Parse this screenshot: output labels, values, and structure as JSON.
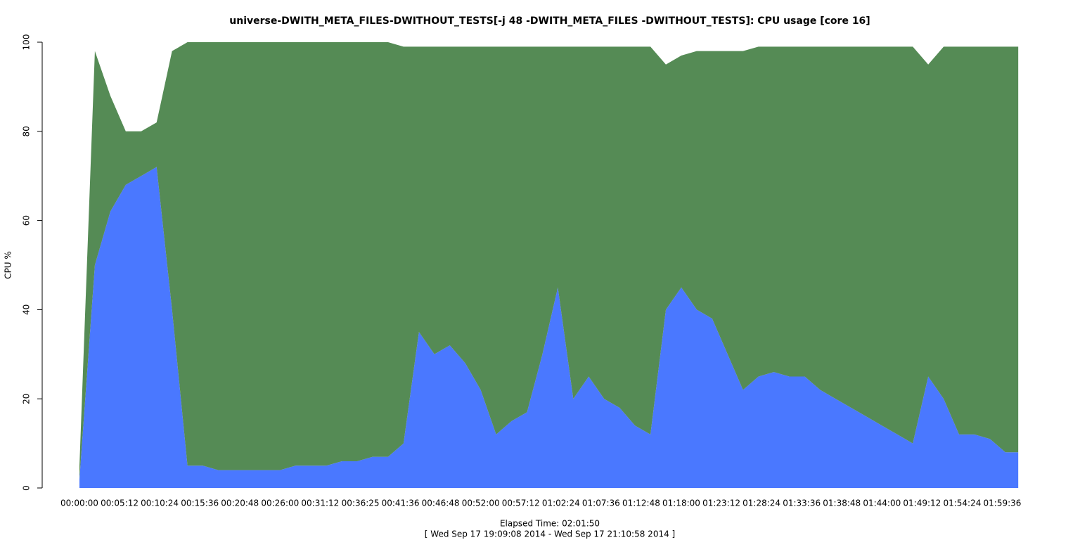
{
  "chart_data": {
    "type": "stacked_area",
    "title": "universe-DWITH_META_FILES-DWITHOUT_TESTS[-j 48 -DWITH_META_FILES -DWITHOUT_TESTS]: CPU usage [core 16]",
    "ylabel": "CPU %",
    "xlabel": "Elapsed Time: 02:01:50",
    "caption": "[ Wed Sep 17 19:09:08 2014 - Wed Sep 17 21:10:58 2014 ]",
    "x": [
      0,
      120,
      240,
      360,
      480,
      600,
      720,
      840,
      960,
      1080,
      1200,
      1320,
      1440,
      1560,
      1680,
      1800,
      1920,
      2040,
      2160,
      2280,
      2400,
      2520,
      2640,
      2760,
      2880,
      3000,
      3120,
      3240,
      3360,
      3480,
      3600,
      3720,
      3840,
      3960,
      4080,
      4200,
      4320,
      4440,
      4560,
      4680,
      4800,
      4920,
      5040,
      5160,
      5280,
      5400,
      5520,
      5640,
      5760,
      5880,
      6000,
      6120,
      6240,
      6360,
      6480,
      6600,
      6720,
      6840,
      6960,
      7080,
      7200,
      7300
    ],
    "series": [
      {
        "color": "#4a78ff",
        "values": [
          2,
          50,
          62,
          68,
          70,
          72,
          40,
          5,
          5,
          4,
          4,
          4,
          4,
          4,
          5,
          5,
          5,
          6,
          6,
          7,
          7,
          10,
          35,
          30,
          32,
          28,
          22,
          12,
          15,
          17,
          30,
          45,
          20,
          25,
          20,
          18,
          14,
          12,
          40,
          45,
          40,
          38,
          30,
          22,
          25,
          26,
          25,
          25,
          22,
          20,
          18,
          16,
          14,
          12,
          10,
          25,
          20,
          12,
          12,
          11,
          8,
          8
        ]
      },
      {
        "color": "#558b55",
        "values": [
          3,
          48,
          26,
          12,
          10,
          10,
          58,
          95,
          95,
          96,
          96,
          96,
          96,
          96,
          95,
          95,
          95,
          94,
          94,
          93,
          93,
          89,
          64,
          69,
          67,
          71,
          77,
          87,
          84,
          82,
          69,
          54,
          79,
          74,
          79,
          81,
          85,
          87,
          55,
          52,
          58,
          60,
          68,
          76,
          74,
          73,
          74,
          74,
          77,
          79,
          81,
          83,
          85,
          87,
          89,
          70,
          79,
          87,
          87,
          88,
          91,
          91
        ]
      }
    ],
    "xlim": [
      0,
      7310
    ],
    "xticks": [
      {
        "value": 0,
        "label": "00:00:00"
      },
      {
        "value": 312,
        "label": "00:05:12"
      },
      {
        "value": 624,
        "label": "00:10:24"
      },
      {
        "value": 936,
        "label": "00:15:36"
      },
      {
        "value": 1248,
        "label": "00:20:48"
      },
      {
        "value": 1560,
        "label": "00:26:00"
      },
      {
        "value": 1872,
        "label": "00:31:12"
      },
      {
        "value": 2185,
        "label": "00:36:25"
      },
      {
        "value": 2496,
        "label": "00:41:36"
      },
      {
        "value": 2808,
        "label": "00:46:48"
      },
      {
        "value": 3120,
        "label": "00:52:00"
      },
      {
        "value": 3432,
        "label": "00:57:12"
      },
      {
        "value": 3744,
        "label": "01:02:24"
      },
      {
        "value": 4056,
        "label": "01:07:36"
      },
      {
        "value": 4368,
        "label": "01:12:48"
      },
      {
        "value": 4680,
        "label": "01:18:00"
      },
      {
        "value": 4992,
        "label": "01:23:12"
      },
      {
        "value": 5304,
        "label": "01:28:24"
      },
      {
        "value": 5616,
        "label": "01:33:36"
      },
      {
        "value": 5928,
        "label": "01:38:48"
      },
      {
        "value": 6240,
        "label": "01:44:00"
      },
      {
        "value": 6552,
        "label": "01:49:12"
      },
      {
        "value": 6864,
        "label": "01:54:24"
      },
      {
        "value": 7176,
        "label": "01:59:36"
      }
    ],
    "ylim": [
      0,
      100
    ],
    "yticks": [
      0,
      20,
      40,
      60,
      80,
      100
    ]
  }
}
